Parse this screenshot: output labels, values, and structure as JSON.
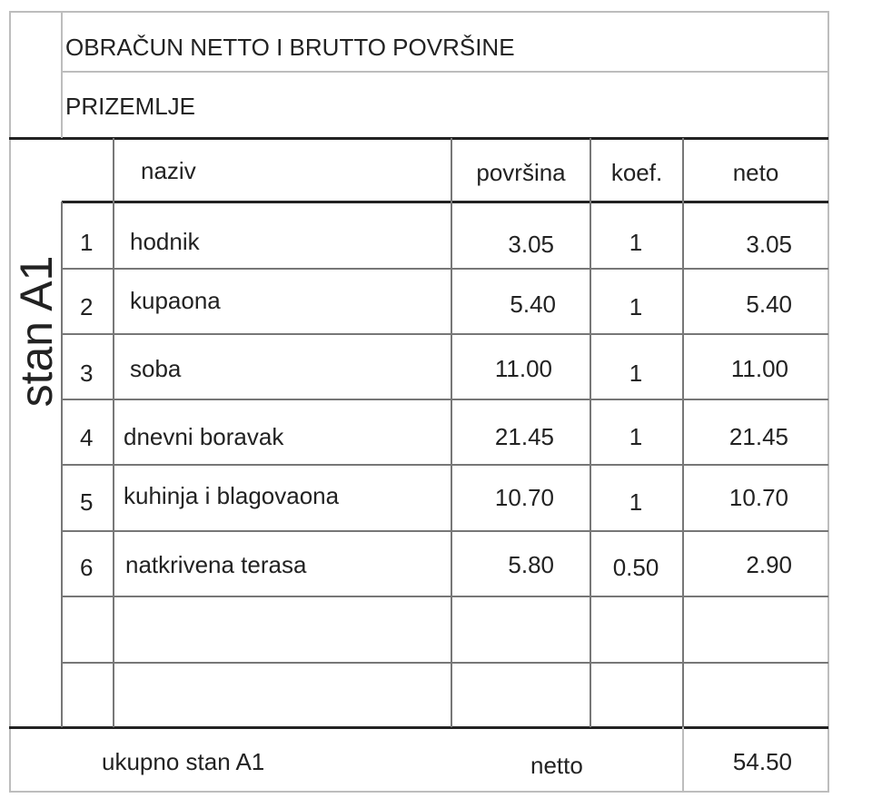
{
  "title": "OBRAČUN NETTO I BRUTTO POVRŠINE",
  "floor": "PRIZEMLJE",
  "unit_label": "stan A1",
  "columns": {
    "name": "naziv",
    "area": "površina",
    "coef": "koef.",
    "net": "neto"
  },
  "rows": [
    {
      "no": "1",
      "name": "hodnik",
      "area": "3.05",
      "coef": "1",
      "net": "3.05"
    },
    {
      "no": "2",
      "name": "kupaona",
      "area": "5.40",
      "coef": "1",
      "net": "5.40"
    },
    {
      "no": "3",
      "name": "soba",
      "area": "11.00",
      "coef": "1",
      "net": "11.00"
    },
    {
      "no": "4",
      "name": "dnevni boravak",
      "area": "21.45",
      "coef": "1",
      "net": "21.45"
    },
    {
      "no": "5",
      "name": "kuhinja i blagovaona",
      "area": "10.70",
      "coef": "1",
      "net": "10.70"
    },
    {
      "no": "6",
      "name": "natkrivena terasa",
      "area": "5.80",
      "coef": "0.50",
      "net": "2.90"
    }
  ],
  "footer": {
    "label": "ukupno stan A1",
    "type": "netto",
    "total": "54.50"
  }
}
